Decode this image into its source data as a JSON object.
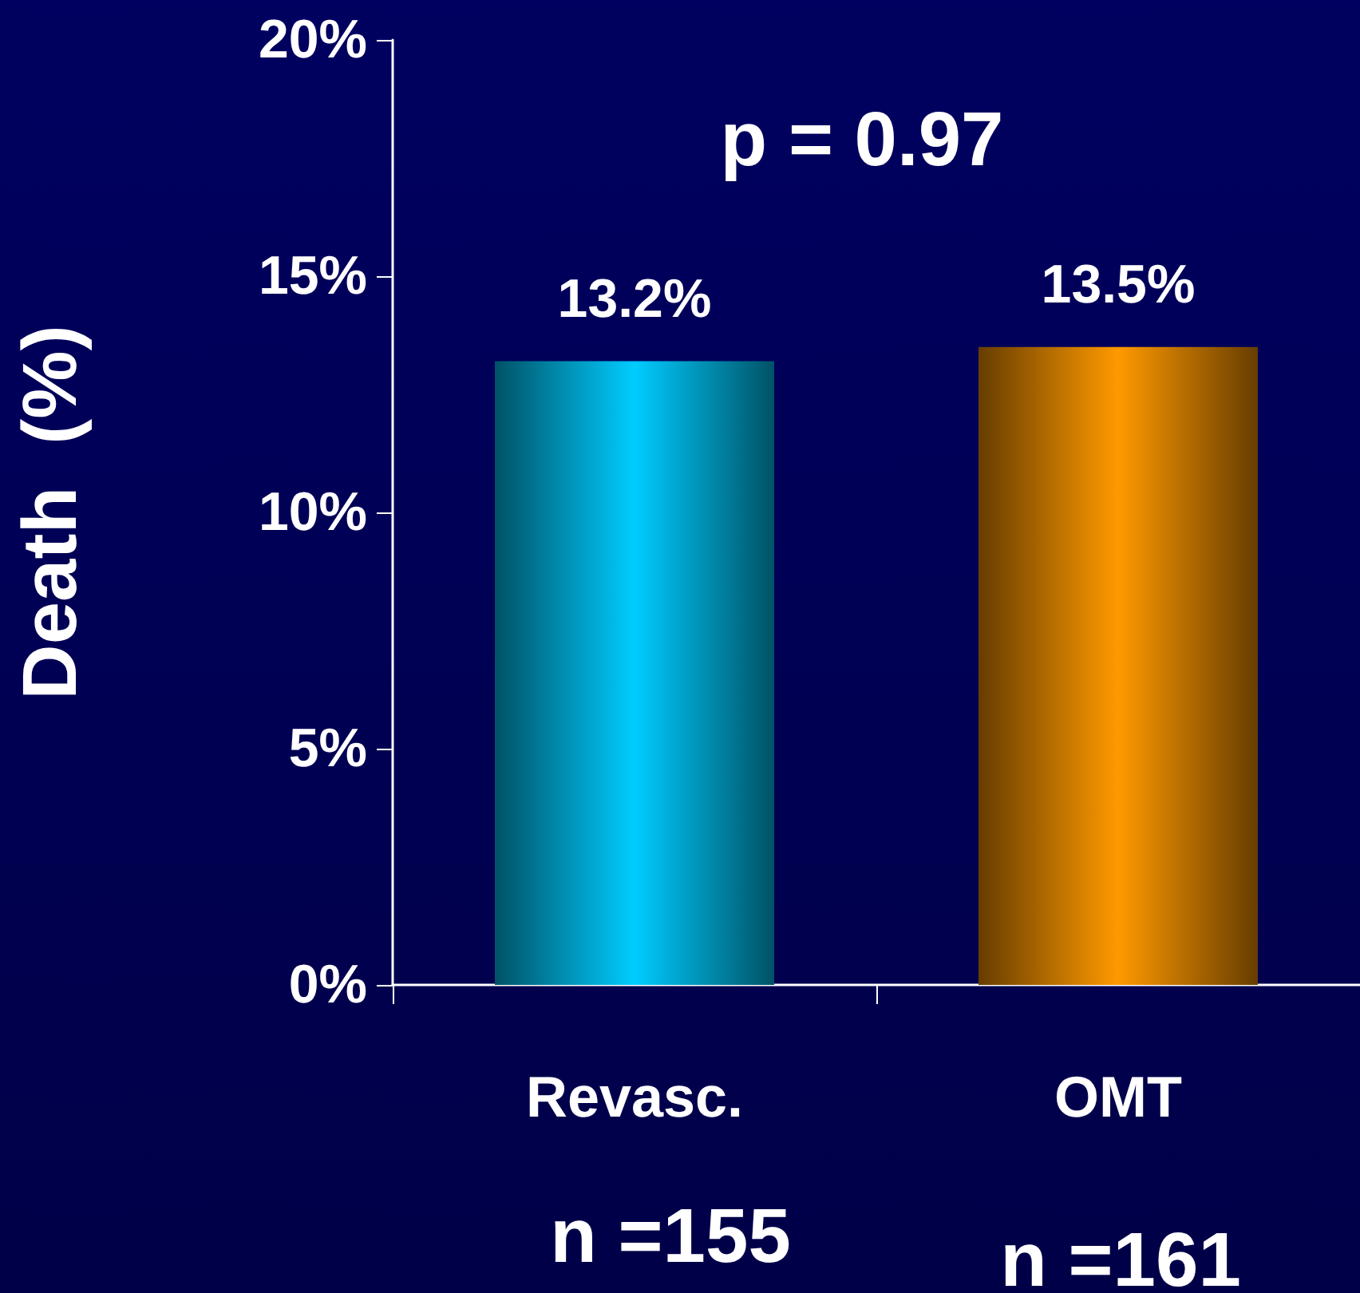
{
  "chart_data": {
    "type": "bar",
    "ylabel": "Death  (%)",
    "categories": [
      "Revasc.",
      "OMT"
    ],
    "values": [
      13.2,
      13.5
    ],
    "colors": [
      "#00ccff",
      "#ff9900"
    ],
    "value_labels": [
      "13.2%",
      "13.5%"
    ],
    "ylim": [
      0,
      20
    ],
    "yticks": [
      {
        "value": 0,
        "label": "0%"
      },
      {
        "value": 5,
        "label": "5%"
      },
      {
        "value": 10,
        "label": "10%"
      },
      {
        "value": 15,
        "label": "15%"
      },
      {
        "value": 20,
        "label": "20%"
      }
    ],
    "grid": false,
    "annotations": [
      "p = 0.97",
      "n =155",
      "n =161"
    ]
  }
}
